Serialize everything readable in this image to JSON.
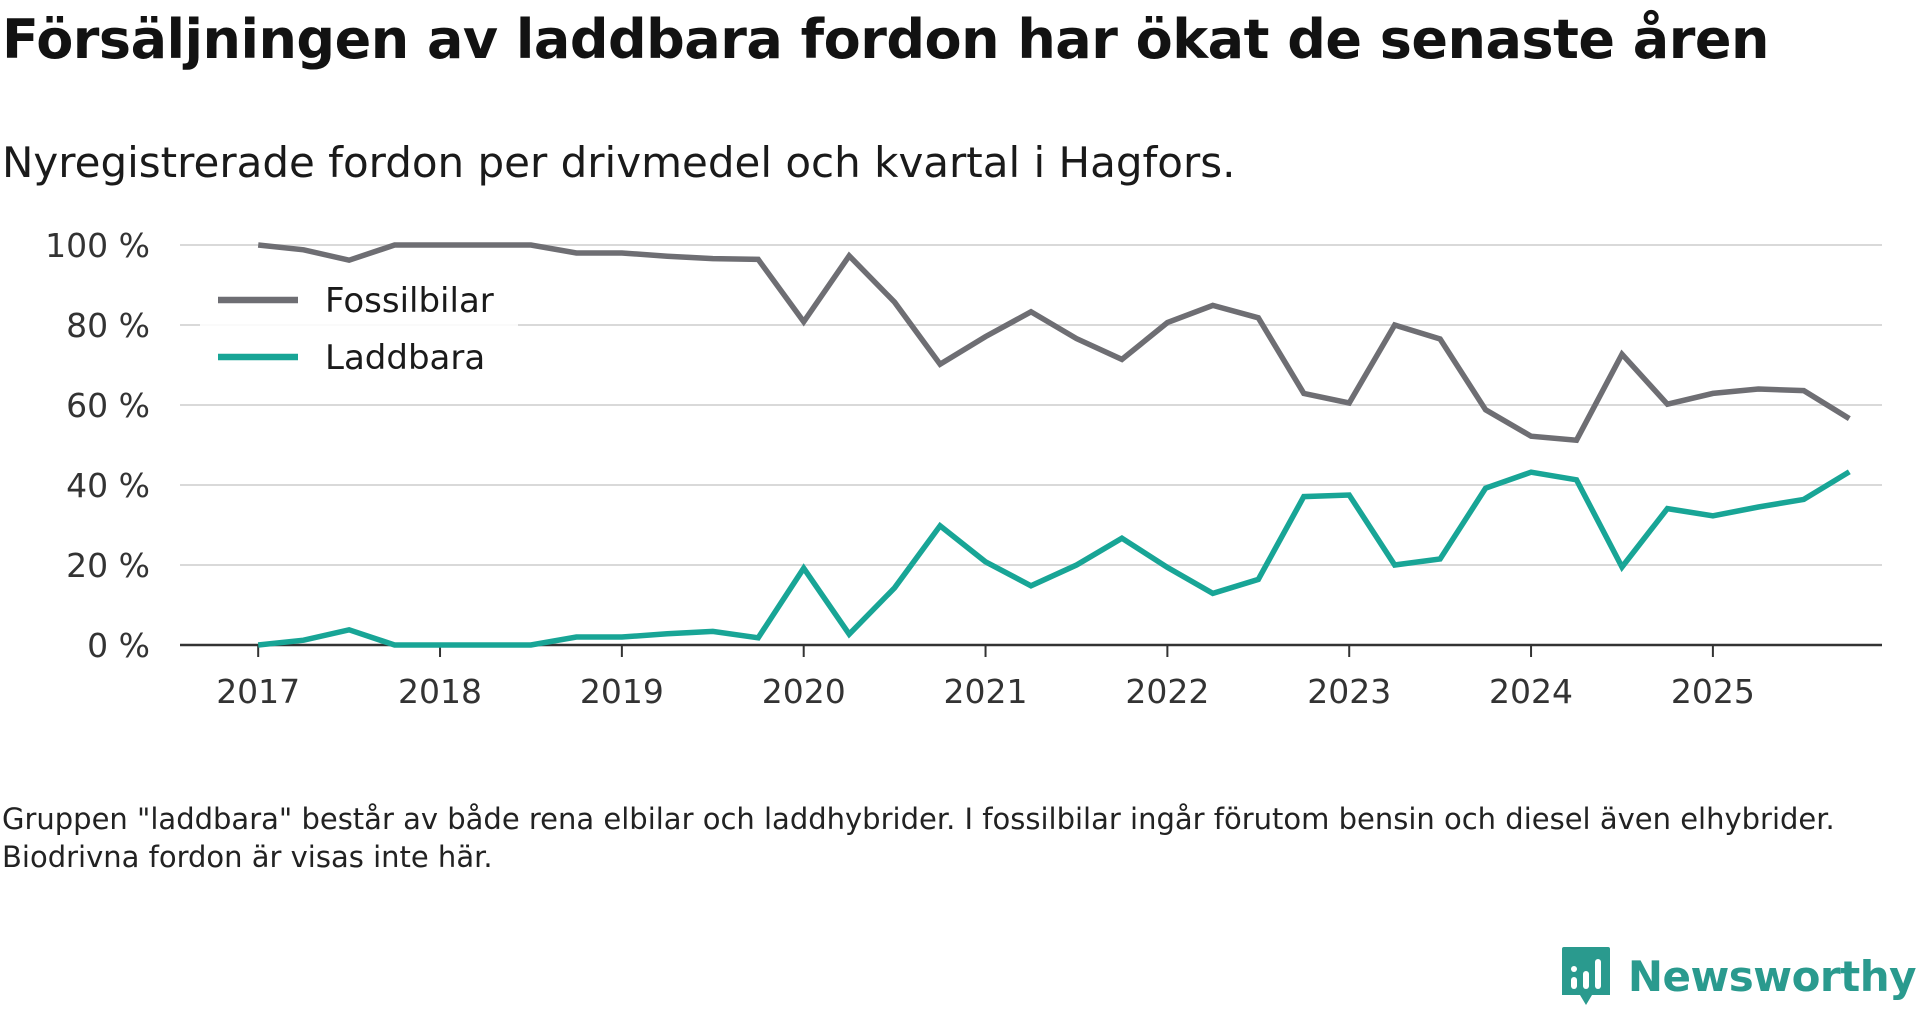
{
  "title": "Försäljningen av laddbara fordon har ökat de senaste åren",
  "subtitle": "Nyregistrerade fordon per drivmedel och kvartal i Hagfors.",
  "note": "Gruppen \"laddbara\" består av både rena elbilar och laddhybrider. I fossilbilar ingår förutom bensin och diesel även elhybrider. Biodrivna fordon är visas inte här.",
  "brand": {
    "name": "Newsworthy",
    "color": "#2a9a8e"
  },
  "chart_data": {
    "type": "line",
    "title": "Försäljningen av laddbara fordon har ökat de senaste åren",
    "xlabel": "",
    "ylabel": "",
    "x": [
      2017.0,
      2017.25,
      2017.5,
      2017.75,
      2018.0,
      2018.25,
      2018.5,
      2018.75,
      2019.0,
      2019.25,
      2019.5,
      2019.75,
      2020.0,
      2020.25,
      2020.5,
      2020.75,
      2021.0,
      2021.25,
      2021.5,
      2021.75,
      2022.0,
      2022.25,
      2022.5,
      2022.75,
      2023.0,
      2023.25,
      2023.5,
      2023.75,
      2024.0,
      2024.25,
      2024.5,
      2024.75,
      2025.0,
      2025.25,
      2025.5,
      2025.75
    ],
    "xlim": [
      2016.57,
      2025.93
    ],
    "xticks": [
      2017,
      2018,
      2019,
      2020,
      2021,
      2022,
      2023,
      2024,
      2025
    ],
    "xtick_labels": [
      "2017",
      "2018",
      "2019",
      "2020",
      "2021",
      "2022",
      "2023",
      "2024",
      "2025"
    ],
    "ylim": [
      0,
      100
    ],
    "yticks": [
      0,
      20,
      40,
      60,
      80,
      100
    ],
    "ytick_labels": [
      "0 %",
      "20 %",
      "40 %",
      "60 %",
      "80 %",
      "100 %"
    ],
    "grid": true,
    "legend_position": "top-left",
    "series": [
      {
        "name": "Fossilbilar",
        "color": "#6e6e73",
        "values": [
          100,
          98.8,
          96.2,
          100,
          100,
          100,
          100,
          98,
          98,
          97.2,
          96.6,
          96.4,
          80.8,
          97.3,
          85.7,
          70.2,
          77.1,
          83.3,
          76.6,
          71.4,
          80.6,
          84.9,
          81.8,
          62.9,
          60.5,
          80,
          76.5,
          58.8,
          52.2,
          51.2,
          72.7,
          60.2,
          62.9,
          64,
          63.6,
          56.6
        ]
      },
      {
        "name": "Laddbara",
        "color": "#18a596",
        "values": [
          0,
          1.2,
          3.8,
          0,
          0,
          0,
          0,
          2,
          2,
          2.8,
          3.4,
          1.8,
          19.2,
          2.7,
          14.3,
          29.8,
          20.8,
          14.8,
          20,
          26.7,
          19.4,
          12.9,
          16.4,
          37.1,
          37.5,
          20,
          21.5,
          39.2,
          43.2,
          41.3,
          19.5,
          34.1,
          32.3,
          34.5,
          36.4,
          43.3
        ]
      }
    ]
  }
}
